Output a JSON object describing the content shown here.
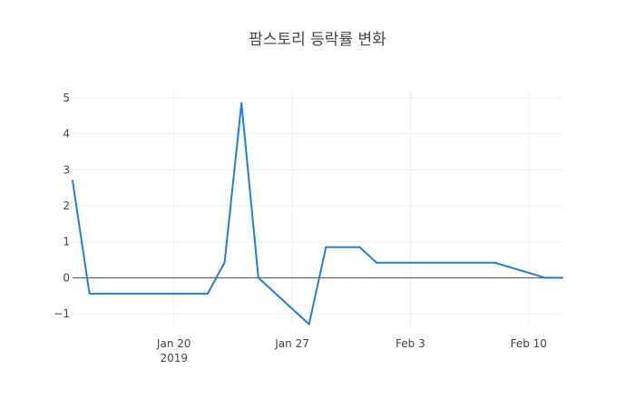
{
  "chart_data": {
    "type": "line",
    "title": "팜스토리 등락률 변화",
    "xlabel": "",
    "ylabel": "",
    "x_tick_labels": [
      "Jan 20",
      "Jan 27",
      "Feb 3",
      "Feb 10"
    ],
    "x_tick_values": [
      "2019-01-20",
      "2019-01-27",
      "2019-02-03",
      "2019-02-10"
    ],
    "x_year_label": "2019",
    "y_tick_labels": [
      "−1",
      "0",
      "1",
      "2",
      "3",
      "4",
      "5"
    ],
    "y_tick_values": [
      -1,
      0,
      1,
      2,
      3,
      4,
      5
    ],
    "xlim": [
      "2019-01-14",
      "2019-02-12"
    ],
    "ylim": [
      -1.35,
      5.2
    ],
    "grid": true,
    "zero_line": true,
    "legend": "none",
    "line_color": "#1f7fd8",
    "series": [
      {
        "x": [
          "2019-01-14",
          "2019-01-15",
          "2019-01-22",
          "2019-01-23",
          "2019-01-24",
          "2019-01-25",
          "2019-01-28",
          "2019-01-29",
          "2019-01-31",
          "2019-02-01",
          "2019-02-08",
          "2019-02-11",
          "2019-02-12"
        ],
        "values": [
          2.7,
          -0.44,
          -0.44,
          0.43,
          4.85,
          0.0,
          -1.29,
          0.85,
          0.85,
          0.42,
          0.42,
          0.0,
          0.0
        ]
      }
    ]
  }
}
